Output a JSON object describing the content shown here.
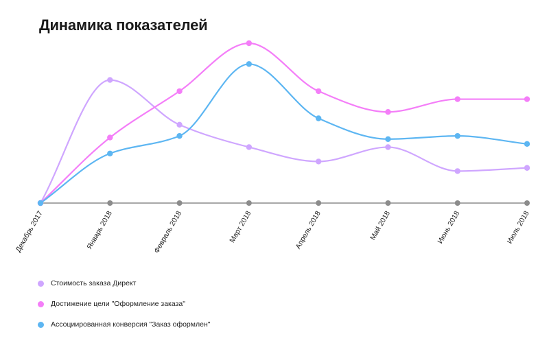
{
  "title": "Динамика показателей",
  "chart_data": {
    "type": "line",
    "categories": [
      "Декабрь 2017",
      "Январь 2018",
      "Февраль 2018",
      "Март 2018",
      "Апрель 2018",
      "Май 2018",
      "Июнь 2018",
      "Июль 2018"
    ],
    "ylim": [
      0,
      100
    ],
    "baseline_color": "#8c8c8c",
    "legend_position": "bottom-left",
    "series": [
      {
        "name": "Стоимость заказа Директ",
        "color": "#cfa6ff",
        "values": [
          0,
          77,
          49,
          35,
          26,
          35,
          20,
          22
        ]
      },
      {
        "name": "Достижение цели \"Оформление заказа\"",
        "color": "#f47ef8",
        "values": [
          0,
          41,
          70,
          100,
          70,
          57,
          65,
          65
        ]
      },
      {
        "name": "Ассоциированная конверсия \"Заказ оформлен\"",
        "color": "#5db6f2",
        "values": [
          0,
          31,
          42,
          87,
          53,
          40,
          42,
          37
        ]
      }
    ]
  }
}
